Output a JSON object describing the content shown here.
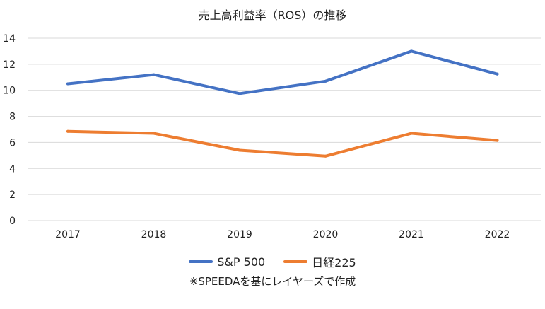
{
  "chart_data": {
    "type": "line",
    "title": "売上高利益率（ROS）の推移",
    "categories": [
      "2017",
      "2018",
      "2019",
      "2020",
      "2021",
      "2022"
    ],
    "series": [
      {
        "name": "S&P 500",
        "color": "#4472C4",
        "values": [
          10.5,
          11.2,
          9.75,
          10.7,
          13.0,
          11.25
        ]
      },
      {
        "name": "日経225",
        "color": "#ED7D31",
        "values": [
          6.85,
          6.7,
          5.4,
          4.95,
          6.7,
          6.15
        ]
      }
    ],
    "ylim": [
      0,
      14
    ],
    "yticks": [
      0,
      2,
      4,
      6,
      8,
      10,
      12,
      14
    ],
    "grid": true,
    "legend_position": "bottom",
    "note": "※SPEEDAを基にレイヤーズで作成"
  }
}
